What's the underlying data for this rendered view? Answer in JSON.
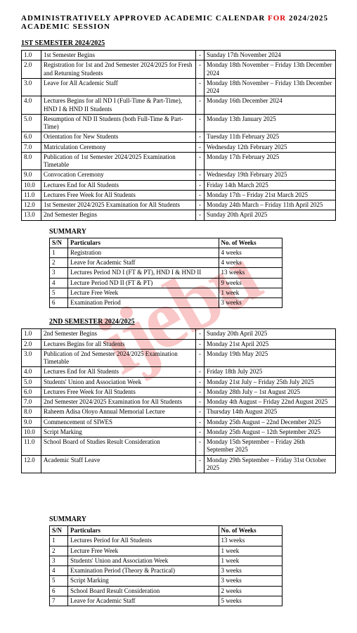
{
  "title_a": "ADMINISTRATIVELY APPROVED ACADEMIC CALENDAR",
  "title_for": "FOR",
  "title_b": "2024/2025 ACADEMIC SESSION",
  "sem1_head": "1ST SEMESTER 2024/2025",
  "sem1_rows": [
    {
      "n": "1.0",
      "a": "1st Semester Begins",
      "b": "Sunday 17th November 2024"
    },
    {
      "n": "2.0",
      "a": "Registration for 1st and 2nd Semester 2024/2025 for Fresh and Returning Students",
      "b": "Monday 18th November – Friday 13th December 2024"
    },
    {
      "n": "3.0",
      "a": "Leave for All Academic Staff",
      "b": "Monday 18th November – Friday 13th December 2024"
    },
    {
      "n": "4.0",
      "a": "Lectures Begins for all ND I (Full-Time & Part-Time), HND I & HND II Students",
      "b": "Monday 16th December 2024"
    },
    {
      "n": "5.0",
      "a": "Resumption of ND II Students (both Full-Time & Part-Time)",
      "b": "Monday 13th January 2025"
    },
    {
      "n": "6.0",
      "a": "Orientation for New Students",
      "b": "Tuesday 11th February 2025"
    },
    {
      "n": "7.0",
      "a": "Matriculation Ceremony",
      "b": "Wednesday 12th February 2025"
    },
    {
      "n": "8.0",
      "a": "Publication of 1st Semester 2024/2025 Examination Timetable",
      "b": "Monday 17th February 2025"
    },
    {
      "n": "9.0",
      "a": "Convocation Ceremony",
      "b": "Wednesday 19th February 2025"
    },
    {
      "n": "10.0",
      "a": "Lectures End for All Students",
      "b": "Friday 14th March 2025"
    },
    {
      "n": "11.0",
      "a": "Lectures Free Week for All Students",
      "b": "Monday 17th – Friday 21st March 2025"
    },
    {
      "n": "12.0",
      "a": "1st Semester 2024/2025 Examination for All Students",
      "b": "Monday 24th March – Friday 11th April 2025"
    },
    {
      "n": "13.0",
      "a": "2nd Semester Begins",
      "b": "Sunday 20th April 2025"
    }
  ],
  "summary_head": "SUMMARY",
  "sum_sn": "S/N",
  "sum_p": "Particulars",
  "sum_w": "No. of Weeks",
  "sum1_rows": [
    {
      "n": "1",
      "a": "Registration",
      "b": "4 weeks"
    },
    {
      "n": "2",
      "a": "Leave for Academic Staff",
      "b": "4 weeks"
    },
    {
      "n": "3",
      "a": "Lectures Period ND I (FT & PT), HND I & HND II",
      "b": "13 weeks"
    },
    {
      "n": "4",
      "a": "Lecture Period ND II (FT & PT)",
      "b": "9 weeks"
    },
    {
      "n": "5",
      "a": "Lecture Free Week",
      "b": "1 week"
    },
    {
      "n": "6",
      "a": "Examination Period",
      "b": "3 weeks"
    }
  ],
  "sem2_head": "2ND SEMESTER 2024/2025",
  "sem2_rows": [
    {
      "n": "1.0",
      "a": "2nd Semester Begins",
      "b": "Sunday 20th April 2025"
    },
    {
      "n": "2.0",
      "a": "Lectures Begins for all Students",
      "b": "Monday 21st April 2025"
    },
    {
      "n": "3.0",
      "a": "Publication of 2nd Semester 2024/2025 Examination Timetable",
      "b": "Monday 19th May 2025"
    },
    {
      "n": "4.0",
      "a": "Lectures End for All Students",
      "b": "Friday 18th July 2025"
    },
    {
      "n": "5.0",
      "a": "Students' Union and Association Week",
      "b": "Monday 21st July – Friday 25th July 2025"
    },
    {
      "n": "6.0",
      "a": "Lectures Free Week for All Students",
      "b": "Monday 28th July – 1st August 2025"
    },
    {
      "n": "7.0",
      "a": "2nd Semester 2024/2025 Examination for All Students",
      "b": "Monday 4th August – Friday 22nd August 2025"
    },
    {
      "n": "8.0",
      "a": "Raheem Adisa Oloyo Annual Memorial Lecture",
      "b": "Thursday 14th August 2025"
    },
    {
      "n": "9.0",
      "a": "Commencement of SIWES",
      "b": "Monday 25th August – 22nd December 2025"
    },
    {
      "n": "10.0",
      "a": "Script Marking",
      "b": "Monday 25th August – 12th September 2025"
    },
    {
      "n": "11.0",
      "a": "School Board of Studies Result Consideration",
      "b": "Monday 15th September – Friday 26th September 2025"
    },
    {
      "n": "12.0",
      "a": "Academic Staff Leave",
      "b": "Monday 29th September – Friday 31st October 2025"
    }
  ],
  "sum2_rows": [
    {
      "n": "1",
      "a": "Lectures Period for All Students",
      "b": "13 weeks"
    },
    {
      "n": "2",
      "a": "Lecture Free Week",
      "b": "1 week"
    },
    {
      "n": "3",
      "a": "Students' Union and Association Week",
      "b": "1 week"
    },
    {
      "n": "4",
      "a": "Examination Period (Theory & Practical)",
      "b": "3 weeks"
    },
    {
      "n": "5",
      "a": "Script Marking",
      "b": "3 weeks"
    },
    {
      "n": "6",
      "a": "School Board Result Consideration",
      "b": "2 weeks"
    },
    {
      "n": "7",
      "a": "Leave for Academic Staff",
      "b": "5 weeks"
    }
  ],
  "watermark": "ijebu"
}
